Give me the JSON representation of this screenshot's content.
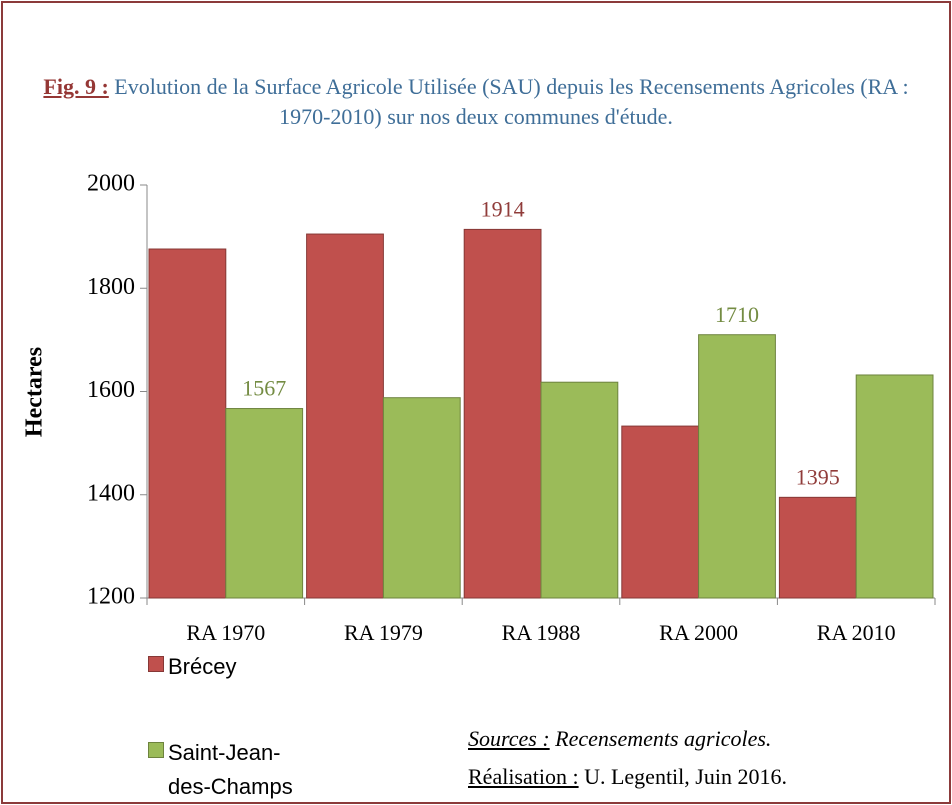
{
  "chart_data": {
    "type": "bar",
    "title": {
      "label": "Fig. 9 :",
      "text": "Evolution de la Surface Agricole Utilisée (SAU) depuis les Recensements Agricoles (RA : 1970-2010) sur nos deux communes d'étude."
    },
    "ylabel": "Hectares",
    "categories": [
      "RA 1970",
      "RA 1979",
      "RA 1988",
      "RA 2000",
      "RA 2010"
    ],
    "series": [
      {
        "name": "Brécey",
        "color": "#c0504d",
        "values": [
          1876,
          1905,
          1914,
          1533,
          1395
        ],
        "value_labels": [
          null,
          null,
          "1914",
          null,
          "1395"
        ]
      },
      {
        "name": "Saint-Jean-des-Champs",
        "color": "#9bbb59",
        "values": [
          1567,
          1588,
          1618,
          1710,
          1632
        ],
        "value_labels": [
          "1567",
          null,
          null,
          "1710",
          null
        ]
      }
    ],
    "ylim": [
      1200,
      2000
    ],
    "yticks": [
      1200,
      1400,
      1600,
      1800,
      2000
    ],
    "grid": false,
    "legend": "bottom-left",
    "sources": {
      "label": "Sources :",
      "text": "Recensements agricoles."
    },
    "credit": {
      "label": "Réalisation :",
      "text": "U. Legentil, Juin 2016."
    }
  }
}
